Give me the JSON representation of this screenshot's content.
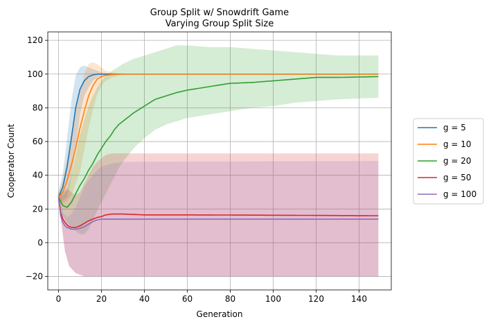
{
  "chart_data": {
    "type": "line",
    "title": "Group Split w/ Snowdrift Game",
    "subtitle": "Varying Group Split Size",
    "xlabel": "Generation",
    "ylabel": "Cooperator Count",
    "xlim": [
      -5,
      155
    ],
    "ylim": [
      -28,
      125
    ],
    "xticks": [
      0,
      20,
      40,
      60,
      80,
      100,
      120,
      140
    ],
    "yticks": [
      -20,
      0,
      20,
      40,
      60,
      80,
      100,
      120
    ],
    "grid": true,
    "legend_position": "right",
    "series": [
      {
        "name": "g = 5",
        "color": "#1f77b4",
        "mean": [
          [
            0,
            27
          ],
          [
            2,
            33
          ],
          [
            4,
            45
          ],
          [
            6,
            62
          ],
          [
            8,
            80
          ],
          [
            10,
            91
          ],
          [
            12,
            96
          ],
          [
            14,
            98.5
          ],
          [
            16,
            99.5
          ],
          [
            18,
            100
          ],
          [
            20,
            100
          ],
          [
            25,
            100
          ],
          [
            149,
            100
          ]
        ],
        "lower": [
          [
            0,
            24
          ],
          [
            2,
            25
          ],
          [
            4,
            27
          ],
          [
            6,
            38
          ],
          [
            8,
            56
          ],
          [
            10,
            76
          ],
          [
            12,
            87
          ],
          [
            14,
            92
          ],
          [
            16,
            96
          ],
          [
            18,
            98
          ],
          [
            20,
            99.3
          ],
          [
            25,
            100
          ],
          [
            149,
            100
          ]
        ],
        "upper": [
          [
            0,
            30
          ],
          [
            2,
            41
          ],
          [
            4,
            62
          ],
          [
            6,
            84
          ],
          [
            8,
            99
          ],
          [
            10,
            104
          ],
          [
            12,
            105
          ],
          [
            14,
            104
          ],
          [
            16,
            103
          ],
          [
            18,
            102
          ],
          [
            20,
            101
          ],
          [
            25,
            100
          ],
          [
            149,
            100
          ]
        ]
      },
      {
        "name": "g = 10",
        "color": "#ff7f0e",
        "mean": [
          [
            0,
            27
          ],
          [
            2,
            30
          ],
          [
            4,
            37
          ],
          [
            6,
            46
          ],
          [
            8,
            56
          ],
          [
            10,
            68
          ],
          [
            12,
            78
          ],
          [
            14,
            87
          ],
          [
            16,
            93
          ],
          [
            18,
            97
          ],
          [
            20,
            98.5
          ],
          [
            22,
            99.3
          ],
          [
            25,
            99.8
          ],
          [
            30,
            100
          ],
          [
            149,
            100
          ]
        ],
        "lower": [
          [
            0,
            24
          ],
          [
            2,
            23
          ],
          [
            4,
            25
          ],
          [
            6,
            28
          ],
          [
            8,
            35
          ],
          [
            10,
            42
          ],
          [
            12,
            55
          ],
          [
            14,
            68
          ],
          [
            16,
            79
          ],
          [
            18,
            88
          ],
          [
            20,
            93
          ],
          [
            22,
            96
          ],
          [
            25,
            98
          ],
          [
            30,
            100
          ],
          [
            149,
            100
          ]
        ],
        "upper": [
          [
            0,
            30
          ],
          [
            2,
            37
          ],
          [
            4,
            50
          ],
          [
            6,
            64
          ],
          [
            8,
            78
          ],
          [
            10,
            89
          ],
          [
            12,
            100
          ],
          [
            14,
            106
          ],
          [
            16,
            107
          ],
          [
            18,
            106
          ],
          [
            20,
            104
          ],
          [
            22,
            102
          ],
          [
            25,
            101
          ],
          [
            30,
            100
          ],
          [
            149,
            100
          ]
        ]
      },
      {
        "name": "g = 20",
        "color": "#2ca02c",
        "mean": [
          [
            0,
            27
          ],
          [
            2,
            22
          ],
          [
            4,
            21
          ],
          [
            6,
            24
          ],
          [
            8,
            29
          ],
          [
            10,
            34
          ],
          [
            12,
            38
          ],
          [
            14,
            43
          ],
          [
            16,
            47
          ],
          [
            18,
            52
          ],
          [
            20,
            56
          ],
          [
            22,
            60
          ],
          [
            24,
            63
          ],
          [
            26,
            67
          ],
          [
            28,
            70
          ],
          [
            30,
            72
          ],
          [
            35,
            77
          ],
          [
            40,
            81
          ],
          [
            45,
            85
          ],
          [
            50,
            87
          ],
          [
            55,
            89
          ],
          [
            60,
            90.5
          ],
          [
            65,
            91.5
          ],
          [
            70,
            92.5
          ],
          [
            75,
            93.5
          ],
          [
            80,
            94.5
          ],
          [
            90,
            95
          ],
          [
            100,
            96
          ],
          [
            110,
            97
          ],
          [
            120,
            98
          ],
          [
            130,
            98
          ],
          [
            149,
            98.5
          ]
        ],
        "lower": [
          [
            0,
            24
          ],
          [
            2,
            16
          ],
          [
            4,
            12
          ],
          [
            6,
            9
          ],
          [
            8,
            7
          ],
          [
            10,
            5
          ],
          [
            12,
            5
          ],
          [
            14,
            8
          ],
          [
            16,
            13
          ],
          [
            18,
            19
          ],
          [
            20,
            24
          ],
          [
            22,
            29
          ],
          [
            24,
            34
          ],
          [
            26,
            39
          ],
          [
            28,
            44
          ],
          [
            30,
            48
          ],
          [
            35,
            56
          ],
          [
            40,
            62
          ],
          [
            45,
            67
          ],
          [
            50,
            70
          ],
          [
            55,
            72
          ],
          [
            60,
            74
          ],
          [
            70,
            76
          ],
          [
            80,
            78
          ],
          [
            90,
            80
          ],
          [
            100,
            81
          ],
          [
            110,
            83
          ],
          [
            120,
            84
          ],
          [
            130,
            85
          ],
          [
            149,
            86
          ]
        ],
        "upper": [
          [
            0,
            30
          ],
          [
            2,
            28
          ],
          [
            4,
            31
          ],
          [
            6,
            39
          ],
          [
            8,
            52
          ],
          [
            10,
            64
          ],
          [
            12,
            73
          ],
          [
            14,
            81
          ],
          [
            16,
            87
          ],
          [
            18,
            92
          ],
          [
            20,
            96
          ],
          [
            22,
            99
          ],
          [
            25,
            102
          ],
          [
            30,
            106
          ],
          [
            35,
            109
          ],
          [
            40,
            111
          ],
          [
            45,
            113
          ],
          [
            50,
            115
          ],
          [
            55,
            117
          ],
          [
            60,
            117
          ],
          [
            70,
            116
          ],
          [
            80,
            116
          ],
          [
            90,
            115
          ],
          [
            100,
            114
          ],
          [
            110,
            113
          ],
          [
            120,
            112
          ],
          [
            130,
            111
          ],
          [
            149,
            111
          ]
        ]
      },
      {
        "name": "g = 50",
        "color": "#d62728",
        "mean": [
          [
            0,
            27
          ],
          [
            1,
            18
          ],
          [
            2,
            14
          ],
          [
            3,
            12
          ],
          [
            4,
            10.5
          ],
          [
            5,
            9.5
          ],
          [
            6,
            9
          ],
          [
            7,
            9
          ],
          [
            8,
            9
          ],
          [
            9,
            9.5
          ],
          [
            10,
            10
          ],
          [
            12,
            11.5
          ],
          [
            14,
            13
          ],
          [
            16,
            14
          ],
          [
            18,
            15
          ],
          [
            20,
            15.5
          ],
          [
            22,
            16.5
          ],
          [
            25,
            17
          ],
          [
            30,
            17
          ],
          [
            40,
            16.5
          ],
          [
            60,
            16.5
          ],
          [
            100,
            16.3
          ],
          [
            149,
            16
          ]
        ],
        "lower": [
          [
            0,
            25
          ],
          [
            3,
            -5
          ],
          [
            5,
            -14
          ],
          [
            8,
            -18
          ],
          [
            12,
            -20
          ],
          [
            20,
            -20
          ],
          [
            149,
            -20
          ]
        ],
        "upper": [
          [
            0,
            29
          ],
          [
            2,
            30
          ],
          [
            4,
            32
          ],
          [
            6,
            30
          ],
          [
            8,
            28
          ],
          [
            10,
            30
          ],
          [
            12,
            35
          ],
          [
            14,
            40
          ],
          [
            16,
            45
          ],
          [
            18,
            48
          ],
          [
            20,
            50
          ],
          [
            22,
            52
          ],
          [
            25,
            53
          ],
          [
            30,
            53
          ],
          [
            149,
            53
          ]
        ]
      },
      {
        "name": "g = 100",
        "color": "#9467bd",
        "mean": [
          [
            0,
            27
          ],
          [
            1,
            16
          ],
          [
            2,
            12
          ],
          [
            3,
            10
          ],
          [
            4,
            9
          ],
          [
            5,
            8.5
          ],
          [
            6,
            8
          ],
          [
            8,
            8
          ],
          [
            10,
            8.5
          ],
          [
            12,
            9.5
          ],
          [
            14,
            11
          ],
          [
            16,
            12.5
          ],
          [
            18,
            13.5
          ],
          [
            20,
            14
          ],
          [
            25,
            14
          ],
          [
            149,
            14
          ]
        ],
        "lower": [
          [
            0,
            25
          ],
          [
            3,
            -5
          ],
          [
            5,
            -14
          ],
          [
            8,
            -18
          ],
          [
            12,
            -20
          ],
          [
            20,
            -20
          ],
          [
            149,
            -20
          ]
        ],
        "upper": [
          [
            0,
            29
          ],
          [
            2,
            18
          ],
          [
            4,
            15
          ],
          [
            6,
            17
          ],
          [
            8,
            21
          ],
          [
            10,
            27
          ],
          [
            12,
            33
          ],
          [
            14,
            37
          ],
          [
            16,
            40
          ],
          [
            18,
            43
          ],
          [
            20,
            45
          ],
          [
            22,
            46
          ],
          [
            25,
            47
          ],
          [
            30,
            48
          ],
          [
            149,
            48.5
          ]
        ]
      }
    ]
  }
}
